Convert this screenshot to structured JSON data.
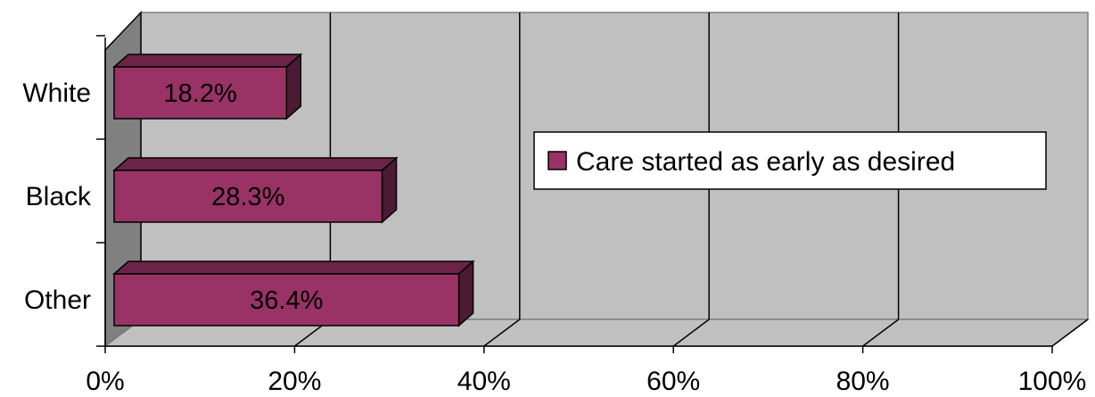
{
  "chart_data": {
    "type": "bar",
    "orientation": "horizontal",
    "three_d": true,
    "categories": [
      "White",
      "Black",
      "Other"
    ],
    "series": [
      {
        "name": "Care started as early as desired",
        "values": [
          18.2,
          28.3,
          36.4
        ],
        "data_labels": [
          "18.2%",
          "28.3%",
          "36.4%"
        ],
        "color": "#993366"
      }
    ],
    "xlim": [
      0,
      100
    ],
    "x_ticks": [
      0,
      20,
      40,
      60,
      80,
      100
    ],
    "x_tick_labels": [
      "0%",
      "20%",
      "40%",
      "60%",
      "80%",
      "100%"
    ],
    "grid": true,
    "legend_position": "right",
    "colors": {
      "plot_background": "#C0C0C0",
      "side_wall": "#808080",
      "bar_front": "#993366",
      "bar_dark": "#4D1A33",
      "bar_top": "#6B2447"
    }
  }
}
